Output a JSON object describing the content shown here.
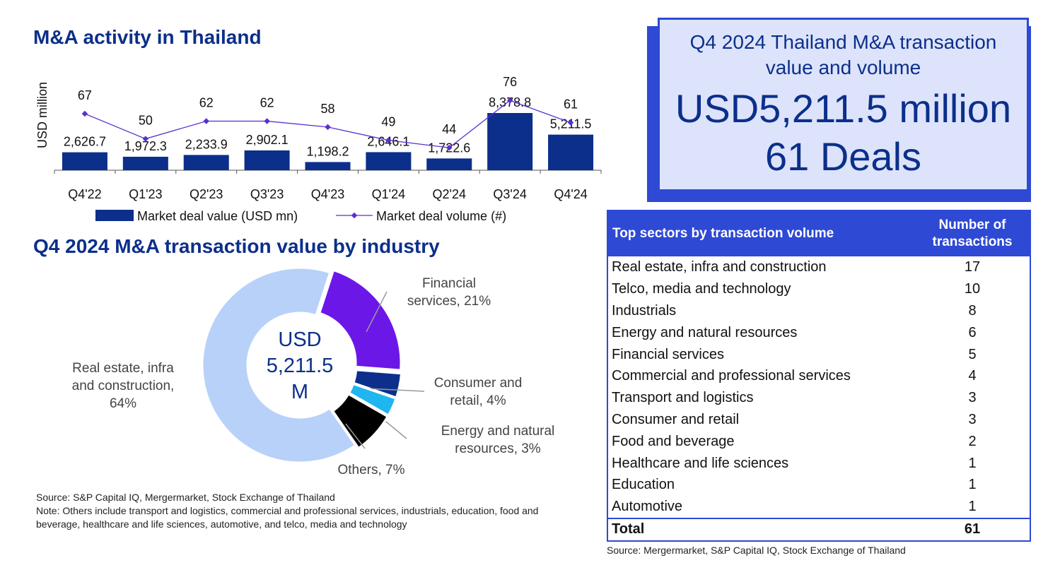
{
  "activity_title": "M&A activity in Thailand",
  "industry_title": "Q4 2024 M&A transaction value by industry",
  "kpi": {
    "title": "Q4 2024 Thailand M&A transaction value and volume",
    "value": "USD5,211.5 million",
    "deals": "61 Deals"
  },
  "chart_data": [
    {
      "type": "bar",
      "title": "M&A activity in Thailand",
      "ylabel": "USD million",
      "categories": [
        "Q4'22",
        "Q1'23",
        "Q2'23",
        "Q3'23",
        "Q4'23",
        "Q1'24",
        "Q2'24",
        "Q3'24",
        "Q4'24"
      ],
      "series": [
        {
          "name": "Market deal value (USD mn)",
          "type": "bar",
          "values": [
            2626.7,
            1972.3,
            2233.9,
            2902.1,
            1198.2,
            2646.1,
            1722.6,
            8378.8,
            5211.5
          ],
          "labels": [
            "2,626.7",
            "1,972.3",
            "2,233.9",
            "2,902.1",
            "1,198.2",
            "2,646.1",
            "1,722.6",
            "8,378.8",
            "5,211.5"
          ],
          "color": "#0b2f8a"
        },
        {
          "name": "Market deal volume (#)",
          "type": "line",
          "values": [
            67,
            50,
            62,
            62,
            58,
            49,
            44,
            76,
            61
          ],
          "labels": [
            "67",
            "50",
            "62",
            "62",
            "58",
            "49",
            "44",
            "76",
            "61"
          ],
          "color": "#5a2fd0"
        }
      ],
      "ylim": [
        0,
        10000
      ],
      "line_ylim": [
        0,
        90
      ],
      "legend_position": "bottom"
    },
    {
      "type": "pie",
      "title": "Q4 2024 M&A transaction value by industry",
      "center_label": [
        "USD",
        "5,211.5",
        "M"
      ],
      "slices": [
        {
          "label": [
            "Financial",
            "services, 21%"
          ],
          "value": 21,
          "color": "#6b17e8"
        },
        {
          "label": [
            "Consumer and",
            "retail, 4%"
          ],
          "value": 4,
          "color": "#0b2f8a"
        },
        {
          "label": [
            "Energy and natural",
            "resources, 3%"
          ],
          "value": 3,
          "color": "#1fb6f0"
        },
        {
          "label": [
            "Others, 7%"
          ],
          "value": 7,
          "color": "#000000"
        },
        {
          "label": [
            "Real estate, infra",
            "and construction,",
            "64%"
          ],
          "value": 64,
          "color": "#b8d1f9"
        }
      ]
    }
  ],
  "notes": {
    "source": "Source: S&P Capital IQ, Mergermarket, Stock Exchange of Thailand",
    "note": "Note: Others include transport and logistics, commercial and professional services, industrials, education, food and beverage, healthcare and life sciences, automotive, and telco, media and technology"
  },
  "table": {
    "header_sector": "Top sectors by transaction volume",
    "header_count": "Number of transactions",
    "rows": [
      {
        "sector": "Real estate, infra and construction",
        "count": "17"
      },
      {
        "sector": "Telco, media and technology",
        "count": "10"
      },
      {
        "sector": "Industrials",
        "count": "8"
      },
      {
        "sector": "Energy and natural resources",
        "count": "6"
      },
      {
        "sector": "Financial services",
        "count": "5"
      },
      {
        "sector": "Commercial and professional services",
        "count": "4"
      },
      {
        "sector": "Transport and logistics",
        "count": "3"
      },
      {
        "sector": "Consumer and retail",
        "count": "3"
      },
      {
        "sector": "Food and beverage",
        "count": "2"
      },
      {
        "sector": "Healthcare and life sciences",
        "count": "1"
      },
      {
        "sector": "Education",
        "count": "1"
      },
      {
        "sector": "Automotive",
        "count": "1"
      }
    ],
    "total_label": "Total",
    "total_value": "61",
    "source": "Source: Mergermarket, S&P Capital IQ, Stock Exchange of Thailand"
  }
}
